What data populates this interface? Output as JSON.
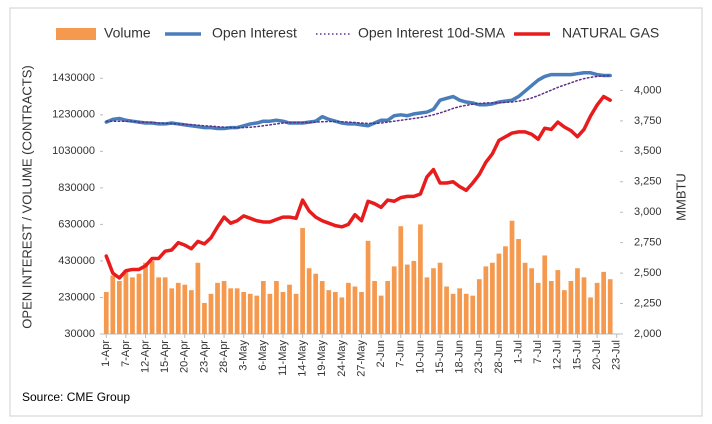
{
  "chart_data": {
    "type": "combo",
    "source": "Source: CME Group",
    "ylabel": "OPEN INTEREST / VOLUME (CONTRACTS)",
    "y2label": "MMBTU",
    "categories": [
      "1-Apr",
      null,
      null,
      "7-Apr",
      null,
      null,
      "12-Apr",
      null,
      null,
      "15-Apr",
      null,
      null,
      "20-Apr",
      null,
      null,
      "23-Apr",
      null,
      null,
      "28-Apr",
      null,
      null,
      "3-May",
      null,
      null,
      "6-May",
      null,
      null,
      "11-May",
      null,
      null,
      "14-May",
      null,
      null,
      "19-May",
      null,
      null,
      "24-May",
      null,
      null,
      "27-May",
      null,
      null,
      "2-Jun",
      null,
      null,
      "7-Jun",
      null,
      null,
      "10-Jun",
      null,
      null,
      "15-Jun",
      null,
      null,
      "18-Jun",
      null,
      null,
      "23-Jun",
      null,
      null,
      "28-Jun",
      null,
      null,
      "1-Jul",
      null,
      null,
      "7-Jul",
      null,
      null,
      "12-Jul",
      null,
      null,
      "15-Jul",
      null,
      null,
      "20-Jul",
      null,
      null,
      "23-Jul"
    ],
    "ylim": [
      30000,
      1530000
    ],
    "yticks": [
      30000,
      230000,
      430000,
      630000,
      830000,
      1030000,
      1230000,
      1430000
    ],
    "y2lim": [
      2000,
      4250
    ],
    "y2ticks": [
      {
        "value": 2000,
        "label": "2,000"
      },
      {
        "value": 2250,
        "label": "2,250"
      },
      {
        "value": 2500,
        "label": "2,500"
      },
      {
        "value": 2750,
        "label": "2,750"
      },
      {
        "value": 3000,
        "label": "3,000"
      },
      {
        "value": 3250,
        "label": "3,250"
      },
      {
        "value": 3500,
        "label": "3,500"
      },
      {
        "value": 3750,
        "label": "3,750"
      },
      {
        "value": 4000,
        "label": "4,000"
      }
    ],
    "series": [
      {
        "name": "Volume",
        "type": "bar",
        "color": "#f5994e",
        "values": [
          260000,
          350000,
          320000,
          380000,
          340000,
          360000,
          420000,
          430000,
          340000,
          340000,
          280000,
          310000,
          300000,
          270000,
          420000,
          200000,
          250000,
          310000,
          320000,
          280000,
          280000,
          260000,
          250000,
          240000,
          320000,
          250000,
          320000,
          260000,
          300000,
          250000,
          610000,
          390000,
          360000,
          320000,
          270000,
          260000,
          230000,
          310000,
          290000,
          260000,
          540000,
          320000,
          240000,
          320000,
          400000,
          620000,
          410000,
          430000,
          630000,
          340000,
          390000,
          420000,
          290000,
          250000,
          280000,
          250000,
          240000,
          330000,
          400000,
          420000,
          470000,
          510000,
          650000,
          550000,
          420000,
          390000,
          310000,
          460000,
          320000,
          380000,
          270000,
          320000,
          390000,
          340000,
          230000,
          310000,
          370000,
          330000,
          null
        ]
      },
      {
        "name": "Open Interest",
        "type": "line",
        "style": "solid",
        "color": "#4a7ebb",
        "values": [
          1190000,
          1205000,
          1210000,
          1200000,
          1195000,
          1190000,
          1185000,
          1185000,
          1180000,
          1180000,
          1185000,
          1180000,
          1175000,
          1170000,
          1165000,
          1160000,
          1160000,
          1155000,
          1155000,
          1160000,
          1160000,
          1170000,
          1180000,
          1185000,
          1195000,
          1195000,
          1200000,
          1195000,
          1185000,
          1185000,
          1185000,
          1190000,
          1195000,
          1220000,
          1205000,
          1195000,
          1185000,
          1180000,
          1180000,
          1175000,
          1170000,
          1185000,
          1200000,
          1200000,
          1225000,
          1230000,
          1225000,
          1235000,
          1240000,
          1245000,
          1260000,
          1310000,
          1320000,
          1330000,
          1310000,
          1300000,
          1295000,
          1285000,
          1285000,
          1290000,
          1300000,
          1305000,
          1310000,
          1330000,
          1360000,
          1390000,
          1420000,
          1440000,
          1450000,
          1450000,
          1450000,
          1450000,
          1455000,
          1460000,
          1460000,
          1450000,
          1445000,
          1445000,
          null
        ]
      },
      {
        "name": "Open Interest 10d-SMA",
        "type": "line",
        "style": "dotted",
        "color": "#5b2f8a",
        "values": [
          1195000,
          1195000,
          1195000,
          1195000,
          1195000,
          1190000,
          1190000,
          1188000,
          1185000,
          1183000,
          1182000,
          1180000,
          1178000,
          1176000,
          1173000,
          1170000,
          1168000,
          1165000,
          1162000,
          1160000,
          1160000,
          1160000,
          1162000,
          1165000,
          1170000,
          1175000,
          1180000,
          1185000,
          1188000,
          1188000,
          1188000,
          1188000,
          1190000,
          1192000,
          1193000,
          1193000,
          1192000,
          1190000,
          1188000,
          1185000,
          1183000,
          1183000,
          1185000,
          1190000,
          1195000,
          1200000,
          1205000,
          1210000,
          1215000,
          1222000,
          1230000,
          1240000,
          1252000,
          1265000,
          1275000,
          1282000,
          1288000,
          1292000,
          1295000,
          1295000,
          1296000,
          1298000,
          1300000,
          1305000,
          1312000,
          1322000,
          1335000,
          1350000,
          1365000,
          1380000,
          1393000,
          1405000,
          1418000,
          1428000,
          1435000,
          1440000,
          1443000,
          1445000,
          null
        ]
      },
      {
        "name": "NATURAL GAS",
        "type": "line",
        "style": "solid",
        "axis": "y2",
        "color": "#e81c1c",
        "values": [
          2640,
          2500,
          2460,
          2520,
          2530,
          2530,
          2560,
          2620,
          2620,
          2680,
          2690,
          2750,
          2730,
          2700,
          2760,
          2740,
          2790,
          2880,
          2960,
          2910,
          2930,
          2970,
          2950,
          2930,
          2920,
          2920,
          2940,
          2960,
          2960,
          2950,
          3100,
          3010,
          2960,
          2930,
          2910,
          2890,
          2880,
          2900,
          2980,
          2930,
          3090,
          3070,
          3040,
          3100,
          3090,
          3120,
          3130,
          3130,
          3150,
          3290,
          3350,
          3240,
          3240,
          3250,
          3210,
          3180,
          3240,
          3310,
          3410,
          3480,
          3590,
          3620,
          3650,
          3660,
          3660,
          3640,
          3600,
          3690,
          3680,
          3740,
          3700,
          3670,
          3620,
          3680,
          3790,
          3880,
          3950,
          3920,
          null
        ]
      }
    ]
  }
}
